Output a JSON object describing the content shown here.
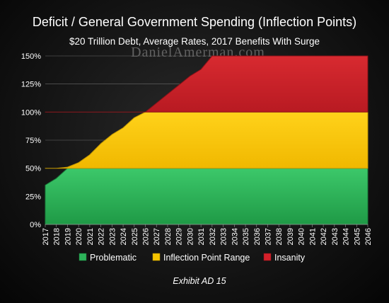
{
  "chart_data": {
    "type": "area",
    "title": "Deficit / General Government Spending (Inflection Points)",
    "subtitle": "$20 Trillion Debt, Average Rates, 2017 Benefits With Surge",
    "watermark": "DanielAmerman.com",
    "exhibit": "Exhibit AD 15",
    "xlabel": "",
    "ylabel": "",
    "x": [
      2017,
      2018,
      2019,
      2020,
      2021,
      2022,
      2023,
      2024,
      2025,
      2026,
      2027,
      2028,
      2029,
      2030,
      2031,
      2032,
      2033,
      2034,
      2035,
      2036,
      2037,
      2038,
      2039,
      2040,
      2041,
      2042,
      2043,
      2044,
      2045,
      2046
    ],
    "x_tick_labels": [
      "2017",
      "2018",
      "2019",
      "2020",
      "2021",
      "2022",
      "2023",
      "2024",
      "2025",
      "2026",
      "2027",
      "2028",
      "2029",
      "2030",
      "2031",
      "2032",
      "2033",
      "2034",
      "2035",
      "2036",
      "2037",
      "2038",
      "2039",
      "2040",
      "2041",
      "2042",
      "2043",
      "2044",
      "2045",
      "2046"
    ],
    "y_tick_labels": [
      "0%",
      "25%",
      "50%",
      "75%",
      "100%",
      "125%",
      "150%"
    ],
    "y_ticks": [
      0,
      25,
      50,
      75,
      100,
      125,
      150
    ],
    "ylim": [
      0,
      150
    ],
    "deficit_pct": [
      35,
      41,
      51,
      55,
      62,
      72,
      80,
      86,
      95,
      100,
      108,
      116,
      124,
      132,
      138,
      150,
      150,
      150,
      150,
      150,
      150,
      150,
      150,
      150,
      150,
      150,
      150,
      150,
      150,
      150
    ],
    "band_thresholds": {
      "problematic_max": 50,
      "inflection_max": 100,
      "insanity_max": 150
    },
    "series": [
      {
        "name": "Problematic",
        "color": "#2db35a"
      },
      {
        "name": "Inflection Point Range",
        "color": "#f5c400"
      },
      {
        "name": "Insanity",
        "color": "#d4202a"
      }
    ],
    "grid": true,
    "legend_position": "bottom"
  }
}
